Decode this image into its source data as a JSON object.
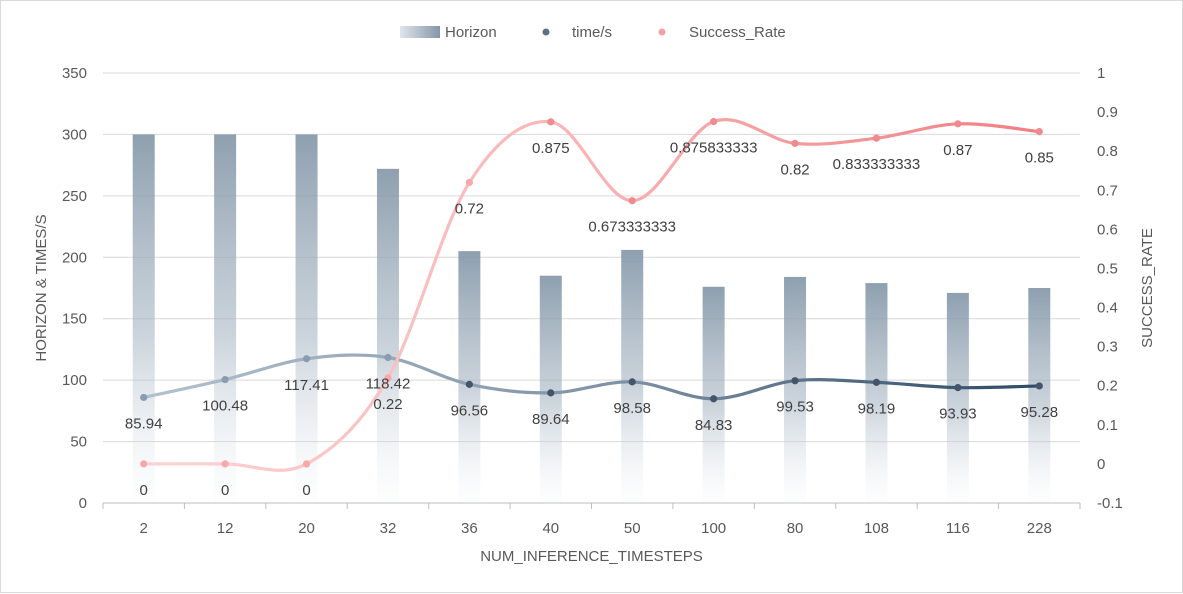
{
  "chart_data": {
    "type": "bar+line",
    "categories": [
      "2",
      "12",
      "20",
      "32",
      "36",
      "40",
      "50",
      "100",
      "80",
      "108",
      "116",
      "228"
    ],
    "xlabel": "NUM_INFERENCE_TIMESTEPS",
    "ylabel_left": "HORIZON & TIMES/S",
    "ylabel_right": "SUCCESS_RATE",
    "ylim_left": [
      0,
      350
    ],
    "yticks_left": [
      "0",
      "50",
      "100",
      "150",
      "200",
      "250",
      "300",
      "350"
    ],
    "ylim_right": [
      -0.1,
      1
    ],
    "yticks_right": [
      "-0.1",
      "0",
      "0.1",
      "0.2",
      "0.3",
      "0.4",
      "0.5",
      "0.6",
      "0.7",
      "0.8",
      "0.9",
      "1"
    ],
    "grid": true,
    "legend_position": "top",
    "series": [
      {
        "name": "Horizon",
        "kind": "bar",
        "axis": "left",
        "color": "#8497a8",
        "values": [
          300,
          300,
          300,
          272,
          205,
          185,
          206,
          176,
          184,
          179,
          171,
          175
        ]
      },
      {
        "name": "time/s",
        "kind": "line",
        "axis": "left",
        "color": "#44546a",
        "values": [
          85.94,
          100.48,
          117.41,
          118.42,
          96.56,
          89.64,
          98.58,
          84.83,
          99.53,
          98.19,
          93.93,
          95.28
        ],
        "labels": [
          "85.94",
          "100.48",
          "117.41",
          "118.42",
          "96.56",
          "89.64",
          "98.58",
          "84.83",
          "99.53",
          "98.19",
          "93.93",
          "95.28"
        ]
      },
      {
        "name": "Success_Rate",
        "kind": "line",
        "axis": "right",
        "color": "#f08a8c",
        "values": [
          0,
          0,
          0,
          0.22,
          0.72,
          0.875,
          0.673333333,
          0.875833333,
          0.82,
          0.833333333,
          0.87,
          0.85
        ],
        "labels": [
          "0",
          "0",
          "0",
          "0.22",
          "0.72",
          "0.875",
          "0.673333333",
          "0.875833333",
          "0.82",
          "0.833333333",
          "0.87",
          "0.85"
        ]
      }
    ]
  }
}
